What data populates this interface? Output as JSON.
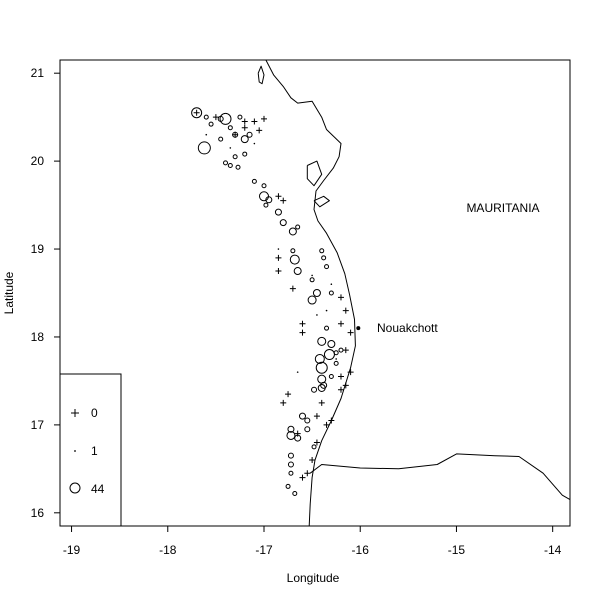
{
  "chart_data": {
    "type": "scatter",
    "title": "",
    "xlabel": "Longitude",
    "ylabel": "Latitude",
    "xlim": [
      -19.12,
      -13.82
    ],
    "ylim": [
      15.85,
      21.15
    ],
    "xticks": [
      "-19",
      "-18",
      "-17",
      "-16",
      "-15",
      "-14"
    ],
    "yticks": [
      "16",
      "17",
      "18",
      "19",
      "20",
      "21"
    ],
    "grid": false,
    "annotations": {
      "country": "MAURITANIA",
      "city": "Nouakchott"
    },
    "city_point": {
      "x": -16.02,
      "y": 18.1
    },
    "legend": {
      "placement": "bottom-left",
      "entries": [
        {
          "label": "0",
          "symbol": "plus"
        },
        {
          "label": "1",
          "symbol": "dot"
        },
        {
          "label": "44",
          "symbol": "circle"
        }
      ]
    },
    "coastline": [
      [
        -16.98,
        21.15
      ],
      [
        -16.9,
        20.98
      ],
      [
        -16.8,
        20.85
      ],
      [
        -16.72,
        20.72
      ],
      [
        -16.65,
        20.66
      ],
      [
        -16.5,
        20.68
      ],
      [
        -16.4,
        20.5
      ],
      [
        -16.35,
        20.36
      ],
      [
        -16.2,
        20.2
      ],
      [
        -16.22,
        20.05
      ],
      [
        -16.28,
        19.92
      ],
      [
        -16.38,
        19.78
      ],
      [
        -16.46,
        19.66
      ],
      [
        -16.48,
        19.45
      ],
      [
        -16.44,
        19.32
      ],
      [
        -16.35,
        19.18
      ],
      [
        -16.24,
        18.96
      ],
      [
        -16.16,
        18.72
      ],
      [
        -16.11,
        18.48
      ],
      [
        -16.06,
        18.2
      ],
      [
        -16.05,
        17.9
      ],
      [
        -16.1,
        17.65
      ],
      [
        -16.2,
        17.3
      ],
      [
        -16.3,
        17.05
      ],
      [
        -16.4,
        16.82
      ],
      [
        -16.47,
        16.6
      ],
      [
        -16.5,
        16.4
      ],
      [
        -16.52,
        16.1
      ],
      [
        -16.53,
        15.85
      ]
    ],
    "islands": [
      [
        [
          -17.06,
          21.0
        ],
        [
          -17.03,
          21.08
        ],
        [
          -17.0,
          20.98
        ],
        [
          -17.02,
          20.88
        ],
        [
          -17.05,
          20.9
        ],
        [
          -17.06,
          21.0
        ]
      ],
      [
        [
          -16.55,
          19.95
        ],
        [
          -16.45,
          20.0
        ],
        [
          -16.4,
          19.85
        ],
        [
          -16.48,
          19.72
        ],
        [
          -16.55,
          19.8
        ],
        [
          -16.55,
          19.95
        ]
      ],
      [
        [
          -16.48,
          19.55
        ],
        [
          -16.38,
          19.6
        ],
        [
          -16.32,
          19.55
        ],
        [
          -16.42,
          19.48
        ],
        [
          -16.48,
          19.55
        ]
      ]
    ],
    "river": [
      [
        -16.52,
        16.45
      ],
      [
        -16.4,
        16.55
      ],
      [
        -16.0,
        16.51
      ],
      [
        -15.6,
        16.5
      ],
      [
        -15.2,
        16.55
      ],
      [
        -15.0,
        16.67
      ],
      [
        -14.6,
        16.65
      ],
      [
        -14.35,
        16.64
      ],
      [
        -14.1,
        16.45
      ],
      [
        -13.9,
        16.2
      ],
      [
        -13.82,
        16.15
      ]
    ],
    "series": [
      {
        "name": "0",
        "symbol": "plus",
        "points": [
          [
            -17.7,
            20.55
          ],
          [
            -17.5,
            20.5
          ],
          [
            -17.2,
            20.45
          ],
          [
            -17.1,
            20.45
          ],
          [
            -17.0,
            20.48
          ],
          [
            -17.2,
            20.38
          ],
          [
            -17.05,
            20.35
          ],
          [
            -17.3,
            20.3
          ],
          [
            -16.85,
            19.6
          ],
          [
            -16.8,
            19.55
          ],
          [
            -16.85,
            18.9
          ],
          [
            -16.85,
            18.75
          ],
          [
            -16.7,
            18.55
          ],
          [
            -16.6,
            18.15
          ],
          [
            -16.6,
            18.05
          ],
          [
            -16.2,
            18.45
          ],
          [
            -16.15,
            18.3
          ],
          [
            -16.1,
            18.05
          ],
          [
            -16.2,
            18.15
          ],
          [
            -16.15,
            17.85
          ],
          [
            -16.2,
            17.55
          ],
          [
            -16.15,
            17.45
          ],
          [
            -16.2,
            17.4
          ],
          [
            -16.1,
            17.6
          ],
          [
            -16.4,
            17.25
          ],
          [
            -16.45,
            17.1
          ],
          [
            -16.35,
            17.0
          ],
          [
            -16.3,
            17.05
          ],
          [
            -16.45,
            16.8
          ],
          [
            -16.5,
            16.6
          ],
          [
            -16.55,
            16.45
          ],
          [
            -16.6,
            16.4
          ],
          [
            -16.8,
            17.25
          ],
          [
            -16.75,
            17.35
          ],
          [
            -16.65,
            16.9
          ]
        ]
      },
      {
        "name": "1",
        "symbol": "dot",
        "points": [
          [
            -17.6,
            20.3
          ],
          [
            -17.35,
            20.15
          ],
          [
            -17.1,
            20.2
          ],
          [
            -16.85,
            19.0
          ],
          [
            -16.5,
            18.7
          ],
          [
            -16.3,
            18.6
          ],
          [
            -16.35,
            18.3
          ],
          [
            -16.45,
            18.25
          ],
          [
            -16.65,
            17.6
          ],
          [
            -16.25,
            17.75
          ]
        ]
      },
      {
        "name": "44",
        "symbol": "circle",
        "points": [
          [
            -17.7,
            20.55,
            9
          ],
          [
            -17.6,
            20.5,
            3
          ],
          [
            -17.55,
            20.42,
            3
          ],
          [
            -17.45,
            20.48,
            4
          ],
          [
            -17.4,
            20.48,
            10
          ],
          [
            -17.25,
            20.5,
            3
          ],
          [
            -17.35,
            20.38,
            3
          ],
          [
            -17.3,
            20.3,
            4
          ],
          [
            -17.2,
            20.25,
            6
          ],
          [
            -17.15,
            20.3,
            4
          ],
          [
            -17.62,
            20.15,
            11
          ],
          [
            -17.45,
            20.25,
            3
          ],
          [
            -17.3,
            20.05,
            3
          ],
          [
            -17.2,
            20.08,
            3
          ],
          [
            -17.4,
            19.98,
            3
          ],
          [
            -17.35,
            19.95,
            3
          ],
          [
            -17.27,
            19.93,
            3
          ],
          [
            -17.1,
            19.77,
            3
          ],
          [
            -17.0,
            19.72,
            3
          ],
          [
            -17.0,
            19.6,
            8
          ],
          [
            -16.95,
            19.56,
            5
          ],
          [
            -16.98,
            19.5,
            3
          ],
          [
            -16.85,
            19.42,
            5
          ],
          [
            -16.8,
            19.3,
            5
          ],
          [
            -16.7,
            19.2,
            6
          ],
          [
            -16.65,
            19.25,
            3
          ],
          [
            -16.7,
            18.98,
            3
          ],
          [
            -16.68,
            18.88,
            8
          ],
          [
            -16.65,
            18.75,
            6
          ],
          [
            -16.4,
            18.98,
            3
          ],
          [
            -16.38,
            18.9,
            3
          ],
          [
            -16.35,
            18.8,
            3
          ],
          [
            -16.5,
            18.65,
            3
          ],
          [
            -16.45,
            18.5,
            6
          ],
          [
            -16.5,
            18.42,
            7
          ],
          [
            -16.3,
            18.5,
            3
          ],
          [
            -16.35,
            18.1,
            3
          ],
          [
            -16.4,
            17.95,
            7
          ],
          [
            -16.3,
            17.92,
            6
          ],
          [
            -16.32,
            17.8,
            9
          ],
          [
            -16.42,
            17.75,
            8
          ],
          [
            -16.4,
            17.65,
            10
          ],
          [
            -16.4,
            17.52,
            7
          ],
          [
            -16.38,
            17.45,
            5
          ],
          [
            -16.4,
            17.42,
            6
          ],
          [
            -16.48,
            17.4,
            4
          ],
          [
            -16.3,
            17.55,
            3
          ],
          [
            -16.25,
            17.7,
            3
          ],
          [
            -16.25,
            17.82,
            3
          ],
          [
            -16.2,
            17.85,
            3
          ],
          [
            -16.6,
            17.1,
            5
          ],
          [
            -16.55,
            17.05,
            4
          ],
          [
            -16.55,
            16.95,
            4
          ],
          [
            -16.72,
            16.95,
            5
          ],
          [
            -16.72,
            16.88,
            7
          ],
          [
            -16.65,
            16.85,
            5
          ],
          [
            -16.48,
            16.75,
            3
          ],
          [
            -16.72,
            16.65,
            4
          ],
          [
            -16.72,
            16.55,
            4
          ],
          [
            -16.72,
            16.45,
            3
          ],
          [
            -16.75,
            16.3,
            3
          ],
          [
            -16.68,
            16.22,
            3
          ]
        ]
      }
    ]
  }
}
